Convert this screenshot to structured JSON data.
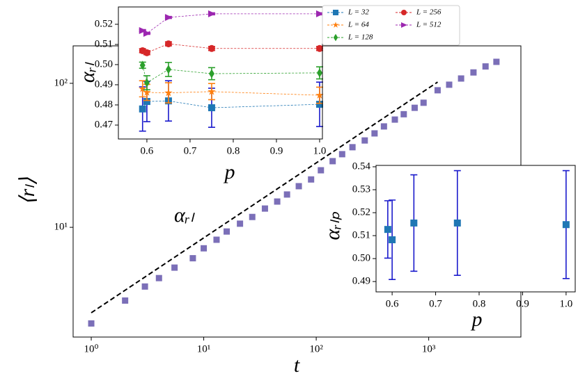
{
  "chart_data": [
    {
      "type": "scatter",
      "xscale": "log",
      "yscale": "log",
      "x_label": "t",
      "y_label": "⟨rₗ⟩",
      "annotation": "αᵣₗ",
      "xlim": [
        0.69,
        6600
      ],
      "ylim": [
        1.73,
        182
      ],
      "xticks": [
        {
          "value": 1,
          "label": "10⁰"
        },
        {
          "value": 10,
          "label": "10¹"
        },
        {
          "value": 100,
          "label": "10²"
        },
        {
          "value": 1000,
          "label": "10³"
        }
      ],
      "yticks": [
        {
          "value": 10,
          "label": "10¹"
        },
        {
          "value": 100,
          "label": "10²"
        }
      ],
      "x": [
        1,
        2,
        3,
        4,
        5.5,
        8,
        10,
        13,
        16,
        21,
        27,
        35,
        45,
        55,
        70,
        90,
        110,
        140,
        170,
        210,
        270,
        330,
        400,
        500,
        600,
        750,
        900,
        1200,
        1520,
        1940,
        2500,
        3200,
        4000
      ],
      "series": [
        {
          "color": "#7b6fb8",
          "marker": "square",
          "values": [
            2.15,
            3.1,
            3.88,
            4.44,
            5.25,
            6.1,
            7.15,
            8.2,
            9.35,
            10.6,
            11.8,
            13.5,
            15.1,
            16.9,
            19.3,
            21.5,
            24.9,
            28.8,
            32.2,
            36,
            40.1,
            44.9,
            50.2,
            56,
            61,
            67.6,
            73.3,
            89.5,
            97.8,
            108,
            119,
            131,
            141
          ]
        }
      ],
      "reference_line": {
        "x": [
          1,
          1200
        ],
        "values": [
          2.55,
          102
        ],
        "color": "#000000",
        "style": "dashed"
      }
    },
    {
      "type": "line",
      "x_label": "p",
      "y_label": "αᵣₗ",
      "xlim": [
        0.534,
        1.0065
      ],
      "ylim": [
        0.4631,
        0.5286
      ],
      "xticks": [
        0.6,
        0.7,
        0.8,
        0.9,
        {
          "value": 1.0,
          "label": "1.0"
        }
      ],
      "yticks": [
        0.47,
        0.48,
        0.49,
        {
          "value": 0.5,
          "label": "0.50"
        },
        0.51,
        0.52
      ],
      "x": [
        0.59,
        0.6,
        0.65,
        0.75,
        1.0
      ],
      "legend": "outside-top-right",
      "series": [
        {
          "name": "L = 32",
          "color": "#1f77b4",
          "marker": "square",
          "error_color": "#1a1acc",
          "values": [
            0.478,
            0.4817,
            0.482,
            0.4786,
            0.4803
          ],
          "errors": [
            0.011,
            0.01,
            0.01,
            0.0097,
            0.011
          ]
        },
        {
          "name": "L = 64",
          "color": "#ff7f0e",
          "marker": "star",
          "error_color": "#ff7f0e",
          "values": [
            0.488,
            0.4862,
            0.486,
            0.4866,
            0.4848
          ],
          "errors": [
            0.004,
            0.004,
            0.005,
            0.004,
            0.004
          ]
        },
        {
          "name": "L = 128",
          "color": "#2ca02c",
          "marker": "diamond",
          "error_color": "#2ca02c",
          "values": [
            0.4997,
            0.491,
            0.4976,
            0.4955,
            0.4959
          ],
          "errors": [
            0.0015,
            0.0035,
            0.0035,
            0.003,
            0.003
          ]
        },
        {
          "name": "L = 256",
          "color": "#d62728",
          "marker": "circle",
          "error_color": "#d62728",
          "values": [
            0.5069,
            0.5059,
            0.5103,
            0.508,
            0.508
          ],
          "errors": [
            0.001,
            0.001,
            0.001,
            0.001,
            0.001
          ]
        },
        {
          "name": "L = 512",
          "color": "#9c27b0",
          "marker": "triangle-right",
          "error_color": "#9c27b0",
          "values": [
            0.5169,
            0.5155,
            0.5234,
            0.5252,
            0.5252
          ],
          "errors": [
            0.0005,
            0.0005,
            0.0005,
            0.0005,
            0.0005
          ]
        }
      ]
    },
    {
      "type": "scatter",
      "x_label": "p",
      "y_label": "αᵣₗₚ",
      "xlim": [
        0.563,
        1.021
      ],
      "ylim": [
        0.4855,
        0.5406
      ],
      "xticks": [
        0.6,
        0.7,
        0.8,
        0.9,
        {
          "value": 1.0,
          "label": "1.0"
        }
      ],
      "yticks": [
        0.49,
        {
          "value": 0.5,
          "label": "0.50"
        },
        0.51,
        0.52,
        0.53,
        0.54
      ],
      "x": [
        0.59,
        0.6,
        0.65,
        0.75,
        1.0
      ],
      "series": [
        {
          "color": "#1f77b4",
          "marker": "square",
          "error_color": "#1a1acc",
          "values": [
            0.5127,
            0.5082,
            0.5155,
            0.5155,
            0.5148
          ],
          "errors": [
            0.0125,
            0.0173,
            0.021,
            0.0228,
            0.0235
          ]
        }
      ]
    }
  ]
}
